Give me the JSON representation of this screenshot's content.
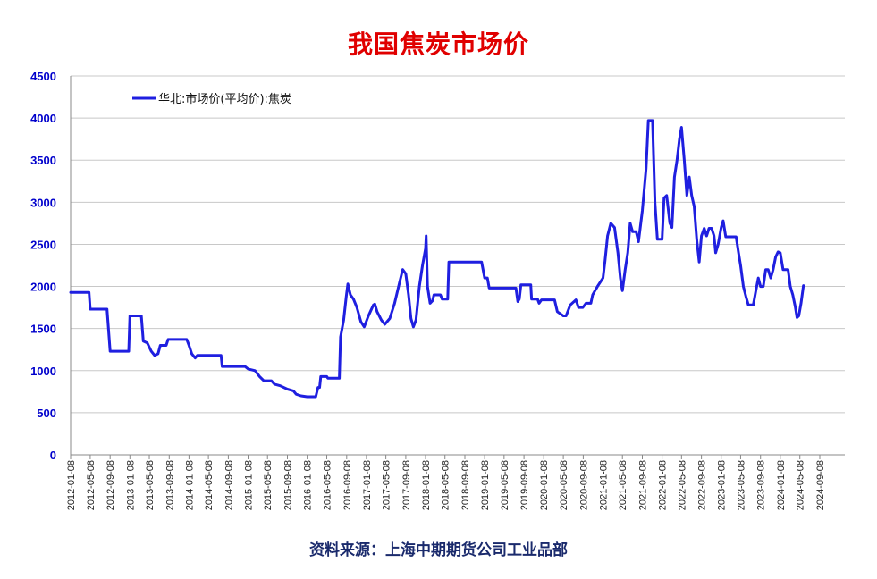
{
  "title": "我国焦炭市场价",
  "source": "资料来源：上海中期期货公司工业品部",
  "colors": {
    "title": "#e00000",
    "series": "#1f1fe0",
    "yticks": "#0000cc",
    "grid": "#c8c8c8"
  },
  "chart_data": {
    "type": "line",
    "title": "我国焦炭市场价",
    "xlabel": "",
    "ylabel": "",
    "ylim": [
      0,
      4500
    ],
    "yticks": [
      0,
      500,
      1000,
      1500,
      2000,
      2500,
      3000,
      3500,
      4000,
      4500
    ],
    "xticks": [
      "2012-01-08",
      "2012-05-08",
      "2012-09-08",
      "2013-01-08",
      "2013-05-08",
      "2013-09-08",
      "2014-01-08",
      "2014-05-08",
      "2014-09-08",
      "2015-01-08",
      "2015-05-08",
      "2015-09-08",
      "2016-01-08",
      "2016-05-08",
      "2016-09-08",
      "2017-01-08",
      "2017-05-08",
      "2017-09-08",
      "2018-01-08",
      "2018-05-08",
      "2018-09-08",
      "2019-01-08",
      "2019-05-08",
      "2019-09-08",
      "2020-01-08",
      "2020-05-08",
      "2020-09-08",
      "2021-01-08",
      "2021-05-08",
      "2021-09-08",
      "2022-01-08",
      "2022-05-08",
      "2022-09-08",
      "2023-01-08",
      "2023-05-08",
      "2023-09-08",
      "2024-01-08",
      "2024-05-08",
      "2024-09-08"
    ],
    "grid": true,
    "legend_position": "top-left",
    "series": [
      {
        "name": "华北:市场价(平均价):焦炭",
        "points": [
          [
            "2012-01-08",
            1930
          ],
          [
            "2012-05-01",
            1930
          ],
          [
            "2012-05-08",
            1730
          ],
          [
            "2012-08-20",
            1730
          ],
          [
            "2012-09-08",
            1230
          ],
          [
            "2013-01-01",
            1230
          ],
          [
            "2013-01-08",
            1650
          ],
          [
            "2013-03-20",
            1650
          ],
          [
            "2013-04-01",
            1350
          ],
          [
            "2013-04-25",
            1330
          ],
          [
            "2013-05-20",
            1230
          ],
          [
            "2013-06-10",
            1180
          ],
          [
            "2013-07-01",
            1200
          ],
          [
            "2013-07-15",
            1300
          ],
          [
            "2013-08-20",
            1300
          ],
          [
            "2013-09-01",
            1370
          ],
          [
            "2013-12-25",
            1370
          ],
          [
            "2014-01-08",
            1300
          ],
          [
            "2014-01-25",
            1200
          ],
          [
            "2014-02-15",
            1150
          ],
          [
            "2014-03-01",
            1180
          ],
          [
            "2014-07-25",
            1180
          ],
          [
            "2014-08-01",
            1050
          ],
          [
            "2014-12-20",
            1050
          ],
          [
            "2015-01-08",
            1020
          ],
          [
            "2015-02-20",
            1000
          ],
          [
            "2015-03-20",
            930
          ],
          [
            "2015-04-15",
            880
          ],
          [
            "2015-06-01",
            880
          ],
          [
            "2015-06-20",
            840
          ],
          [
            "2015-07-25",
            820
          ],
          [
            "2015-09-08",
            780
          ],
          [
            "2015-10-15",
            760
          ],
          [
            "2015-11-01",
            720
          ],
          [
            "2015-12-01",
            700
          ],
          [
            "2016-01-08",
            690
          ],
          [
            "2016-03-01",
            690
          ],
          [
            "2016-03-15",
            800
          ],
          [
            "2016-03-25",
            800
          ],
          [
            "2016-04-01",
            930
          ],
          [
            "2016-05-08",
            930
          ],
          [
            "2016-05-15",
            910
          ],
          [
            "2016-07-25",
            910
          ],
          [
            "2016-08-01",
            1400
          ],
          [
            "2016-08-20",
            1600
          ],
          [
            "2016-09-05",
            1880
          ],
          [
            "2016-09-15",
            2030
          ],
          [
            "2016-10-01",
            1900
          ],
          [
            "2016-10-20",
            1850
          ],
          [
            "2016-11-10",
            1750
          ],
          [
            "2016-12-05",
            1580
          ],
          [
            "2016-12-25",
            1520
          ],
          [
            "2017-01-20",
            1650
          ],
          [
            "2017-02-20",
            1780
          ],
          [
            "2017-03-01",
            1790
          ],
          [
            "2017-03-15",
            1700
          ],
          [
            "2017-04-10",
            1600
          ],
          [
            "2017-05-01",
            1550
          ],
          [
            "2017-06-01",
            1620
          ],
          [
            "2017-07-01",
            1800
          ],
          [
            "2017-08-01",
            2050
          ],
          [
            "2017-08-20",
            2200
          ],
          [
            "2017-09-08",
            2150
          ],
          [
            "2017-09-25",
            1900
          ],
          [
            "2017-10-10",
            1620
          ],
          [
            "2017-10-25",
            1520
          ],
          [
            "2017-11-10",
            1600
          ],
          [
            "2017-12-01",
            2000
          ],
          [
            "2017-12-20",
            2250
          ],
          [
            "2018-01-08",
            2450
          ],
          [
            "2018-01-12",
            2600
          ],
          [
            "2018-01-20",
            2000
          ],
          [
            "2018-02-05",
            1800
          ],
          [
            "2018-02-20",
            1830
          ],
          [
            "2018-03-01",
            1900
          ],
          [
            "2018-04-10",
            1900
          ],
          [
            "2018-04-20",
            1850
          ],
          [
            "2018-05-25",
            1850
          ],
          [
            "2018-06-01",
            2290
          ],
          [
            "2018-12-20",
            2290
          ],
          [
            "2019-01-08",
            2100
          ],
          [
            "2019-01-25",
            2100
          ],
          [
            "2019-02-05",
            1980
          ],
          [
            "2019-07-20",
            1980
          ],
          [
            "2019-08-01",
            1820
          ],
          [
            "2019-08-10",
            1850
          ],
          [
            "2019-08-20",
            2020
          ],
          [
            "2019-10-20",
            2020
          ],
          [
            "2019-10-25",
            1850
          ],
          [
            "2019-12-01",
            1850
          ],
          [
            "2019-12-10",
            1800
          ],
          [
            "2019-12-25",
            1840
          ],
          [
            "2020-03-15",
            1840
          ],
          [
            "2020-04-01",
            1700
          ],
          [
            "2020-05-08",
            1650
          ],
          [
            "2020-05-25",
            1650
          ],
          [
            "2020-06-20",
            1780
          ],
          [
            "2020-07-25",
            1840
          ],
          [
            "2020-08-10",
            1750
          ],
          [
            "2020-09-05",
            1750
          ],
          [
            "2020-09-25",
            1800
          ],
          [
            "2020-10-25",
            1800
          ],
          [
            "2020-11-05",
            1900
          ],
          [
            "2020-11-20",
            1950
          ],
          [
            "2020-12-05",
            2000
          ],
          [
            "2021-01-08",
            2100
          ],
          [
            "2021-01-20",
            2300
          ],
          [
            "2021-02-05",
            2600
          ],
          [
            "2021-02-25",
            2750
          ],
          [
            "2021-03-20",
            2700
          ],
          [
            "2021-04-10",
            2400
          ],
          [
            "2021-04-25",
            2100
          ],
          [
            "2021-05-08",
            1950
          ],
          [
            "2021-05-25",
            2200
          ],
          [
            "2021-06-10",
            2400
          ],
          [
            "2021-06-25",
            2750
          ],
          [
            "2021-07-10",
            2650
          ],
          [
            "2021-08-01",
            2650
          ],
          [
            "2021-08-15",
            2530
          ],
          [
            "2021-09-08",
            2900
          ],
          [
            "2021-10-01",
            3400
          ],
          [
            "2021-10-15",
            3970
          ],
          [
            "2021-11-10",
            3970
          ],
          [
            "2021-11-25",
            3000
          ],
          [
            "2021-12-10",
            2560
          ],
          [
            "2022-01-08",
            2560
          ],
          [
            "2022-01-20",
            3050
          ],
          [
            "2022-02-05",
            3080
          ],
          [
            "2022-02-25",
            2750
          ],
          [
            "2022-03-10",
            2700
          ],
          [
            "2022-03-25",
            3300
          ],
          [
            "2022-04-10",
            3500
          ],
          [
            "2022-04-25",
            3750
          ],
          [
            "2022-05-08",
            3890
          ],
          [
            "2022-05-25",
            3500
          ],
          [
            "2022-06-10",
            3080
          ],
          [
            "2022-06-25",
            3300
          ],
          [
            "2022-07-10",
            3080
          ],
          [
            "2022-07-25",
            2950
          ],
          [
            "2022-08-10",
            2550
          ],
          [
            "2022-08-25",
            2290
          ],
          [
            "2022-09-08",
            2600
          ],
          [
            "2022-09-25",
            2690
          ],
          [
            "2022-10-10",
            2600
          ],
          [
            "2022-10-25",
            2690
          ],
          [
            "2022-11-10",
            2690
          ],
          [
            "2022-11-25",
            2600
          ],
          [
            "2022-12-05",
            2400
          ],
          [
            "2022-12-20",
            2500
          ],
          [
            "2023-01-08",
            2700
          ],
          [
            "2023-01-20",
            2780
          ],
          [
            "2023-02-05",
            2590
          ],
          [
            "2023-04-10",
            2590
          ],
          [
            "2023-04-25",
            2400
          ],
          [
            "2023-05-08",
            2250
          ],
          [
            "2023-05-25",
            2000
          ],
          [
            "2023-06-10",
            1880
          ],
          [
            "2023-06-25",
            1780
          ],
          [
            "2023-07-25",
            1780
          ],
          [
            "2023-08-10",
            1950
          ],
          [
            "2023-08-25",
            2100
          ],
          [
            "2023-09-08",
            2000
          ],
          [
            "2023-09-25",
            2000
          ],
          [
            "2023-10-10",
            2200
          ],
          [
            "2023-10-25",
            2200
          ],
          [
            "2023-11-10",
            2100
          ],
          [
            "2023-11-25",
            2200
          ],
          [
            "2023-12-10",
            2350
          ],
          [
            "2023-12-25",
            2410
          ],
          [
            "2024-01-08",
            2400
          ],
          [
            "2024-01-25",
            2200
          ],
          [
            "2024-02-25",
            2200
          ],
          [
            "2024-03-10",
            2000
          ],
          [
            "2024-03-25",
            1900
          ],
          [
            "2024-04-10",
            1750
          ],
          [
            "2024-04-20",
            1630
          ],
          [
            "2024-05-01",
            1650
          ],
          [
            "2024-05-15",
            1800
          ],
          [
            "2024-05-30",
            2010
          ]
        ]
      }
    ]
  }
}
